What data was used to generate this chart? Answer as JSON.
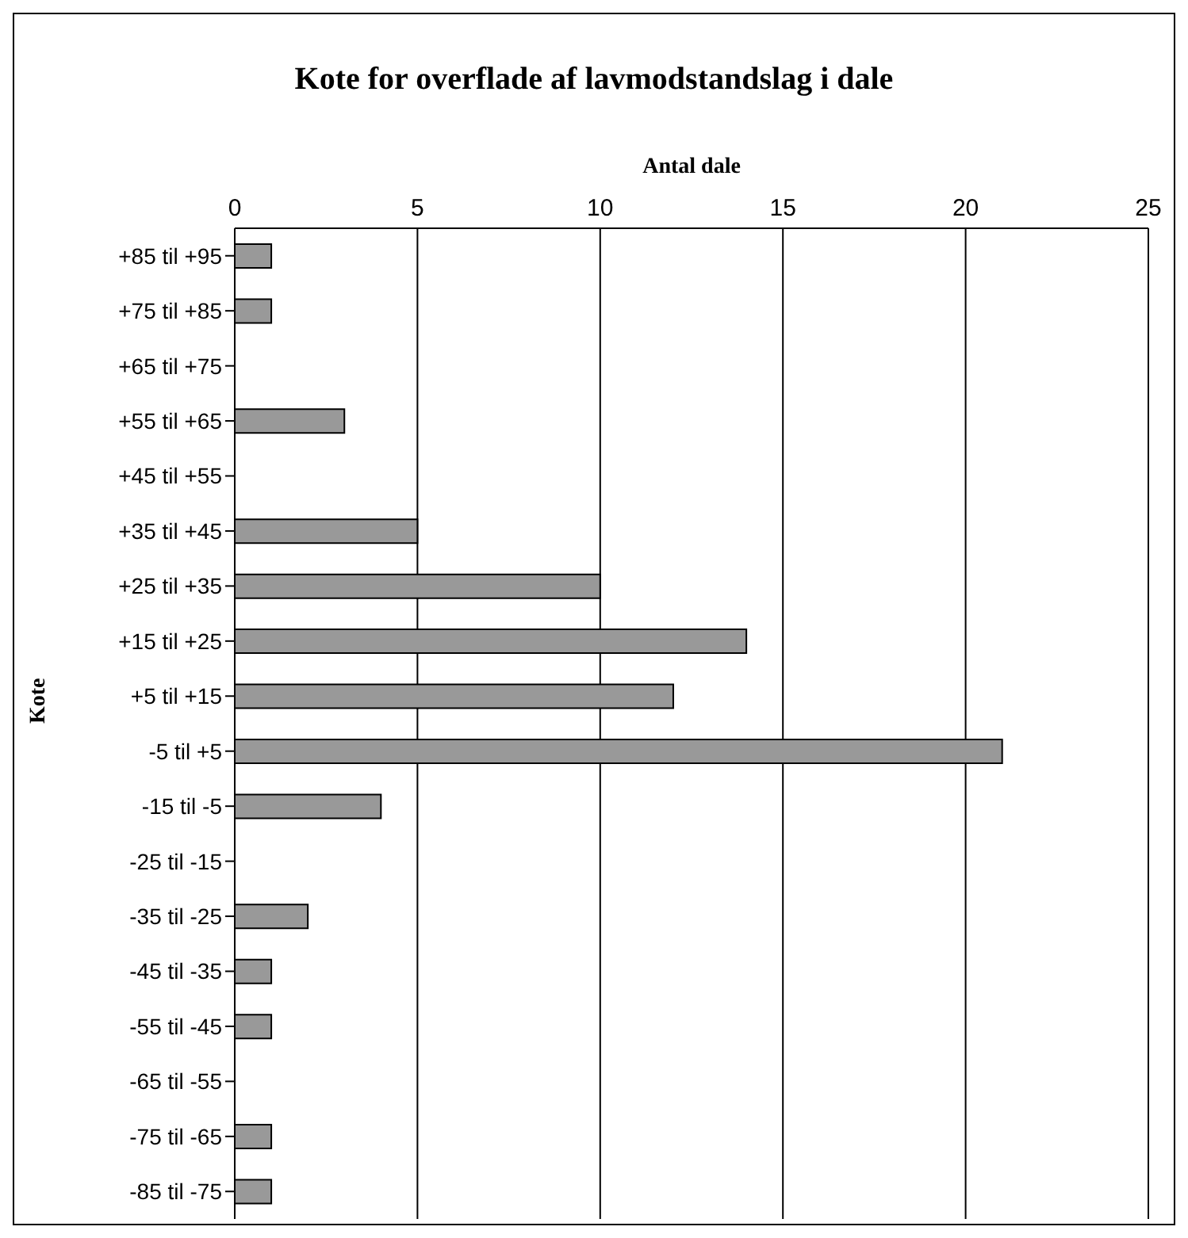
{
  "chart_data": {
    "type": "bar",
    "orientation": "horizontal",
    "title": "Kote for overflade af lavmodstandslag i dale",
    "xlabel": "Antal dale",
    "ylabel": "Kote",
    "categories": [
      "+85 til +95",
      "+75 til +85",
      "+65 til +75",
      "+55 til +65",
      "+45 til +55",
      "+35 til +45",
      "+25 til +35",
      "+15 til +25",
      "+5 til +15",
      "-5 til +5",
      "-15 til -5",
      "-25 til -15",
      "-35 til -25",
      "-45 til -35",
      "-55 til -45",
      "-65 til -55",
      "-75 til -65",
      "-85 til -75"
    ],
    "values": [
      1,
      1,
      0,
      3,
      0,
      5,
      10,
      14,
      12,
      21,
      4,
      0,
      2,
      1,
      1,
      0,
      1,
      1
    ],
    "color": "#999999",
    "xlim": [
      0,
      25
    ],
    "xticks": [
      0,
      5,
      10,
      15,
      20,
      25
    ],
    "grid": "x"
  }
}
